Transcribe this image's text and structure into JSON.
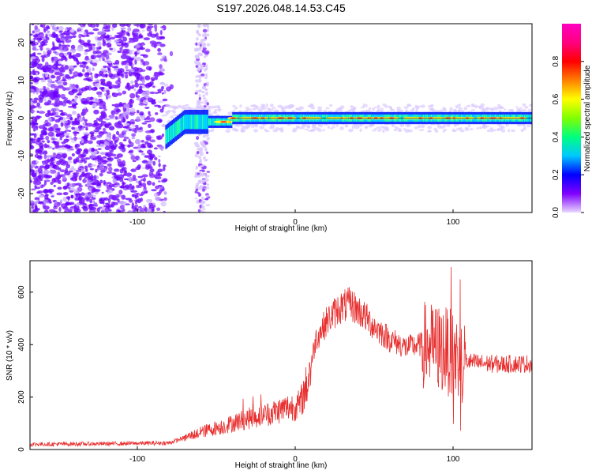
{
  "title": "S197.2026.048.14.53.C45",
  "chart_data": [
    {
      "type": "heatmap",
      "name": "spectrogram",
      "xlabel": "Height of straight line (km)",
      "ylabel": "Frequency (Hz)",
      "xlim": [
        -168,
        150
      ],
      "ylim": [
        -25,
        25
      ],
      "xticks": [
        -100,
        0,
        100
      ],
      "yticks": [
        -20,
        -10,
        0,
        10,
        20
      ],
      "colorbar": {
        "label": "Normalized spectral amplitude",
        "range": [
          0,
          1
        ],
        "ticks": [
          0.0,
          0.2,
          0.4,
          0.6,
          0.8
        ],
        "colors": [
          "#e8d8ff",
          "#8000ff",
          "#0000ff",
          "#00c8ff",
          "#00ff80",
          "#80ff00",
          "#ffff00",
          "#ff8000",
          "#ff0000",
          "#ff0080",
          "#ff00c0"
        ]
      },
      "features": {
        "noise_region_x": [
          -168,
          -82
        ],
        "noise_strip_x": [
          -63,
          -55
        ],
        "signal_band_x": [
          -82,
          150
        ],
        "signal_band_center_hz": 0
      }
    },
    {
      "type": "line",
      "name": "snr",
      "xlabel": "Height of straight line (km)",
      "ylabel": "SNR (10 * v/v)",
      "xlim": [
        -168,
        150
      ],
      "ylim": [
        0,
        720
      ],
      "xticks": [
        -100,
        0,
        100
      ],
      "yticks": [
        0,
        200,
        400,
        600
      ],
      "color": "#e83030",
      "profile": [
        [
          -168,
          20
        ],
        [
          -120,
          22
        ],
        [
          -80,
          25
        ],
        [
          -70,
          45
        ],
        [
          -55,
          75
        ],
        [
          -45,
          90
        ],
        [
          -35,
          110
        ],
        [
          -25,
          125
        ],
        [
          -15,
          140
        ],
        [
          -5,
          160
        ],
        [
          3,
          170
        ],
        [
          8,
          260
        ],
        [
          13,
          420
        ],
        [
          20,
          490
        ],
        [
          28,
          540
        ],
        [
          35,
          555
        ],
        [
          42,
          520
        ],
        [
          50,
          470
        ],
        [
          60,
          420
        ],
        [
          70,
          390
        ],
        [
          80,
          400
        ],
        [
          88,
          390
        ],
        [
          95,
          380
        ],
        [
          105,
          340
        ],
        [
          115,
          330
        ],
        [
          130,
          325
        ],
        [
          150,
          328
        ]
      ]
    }
  ]
}
